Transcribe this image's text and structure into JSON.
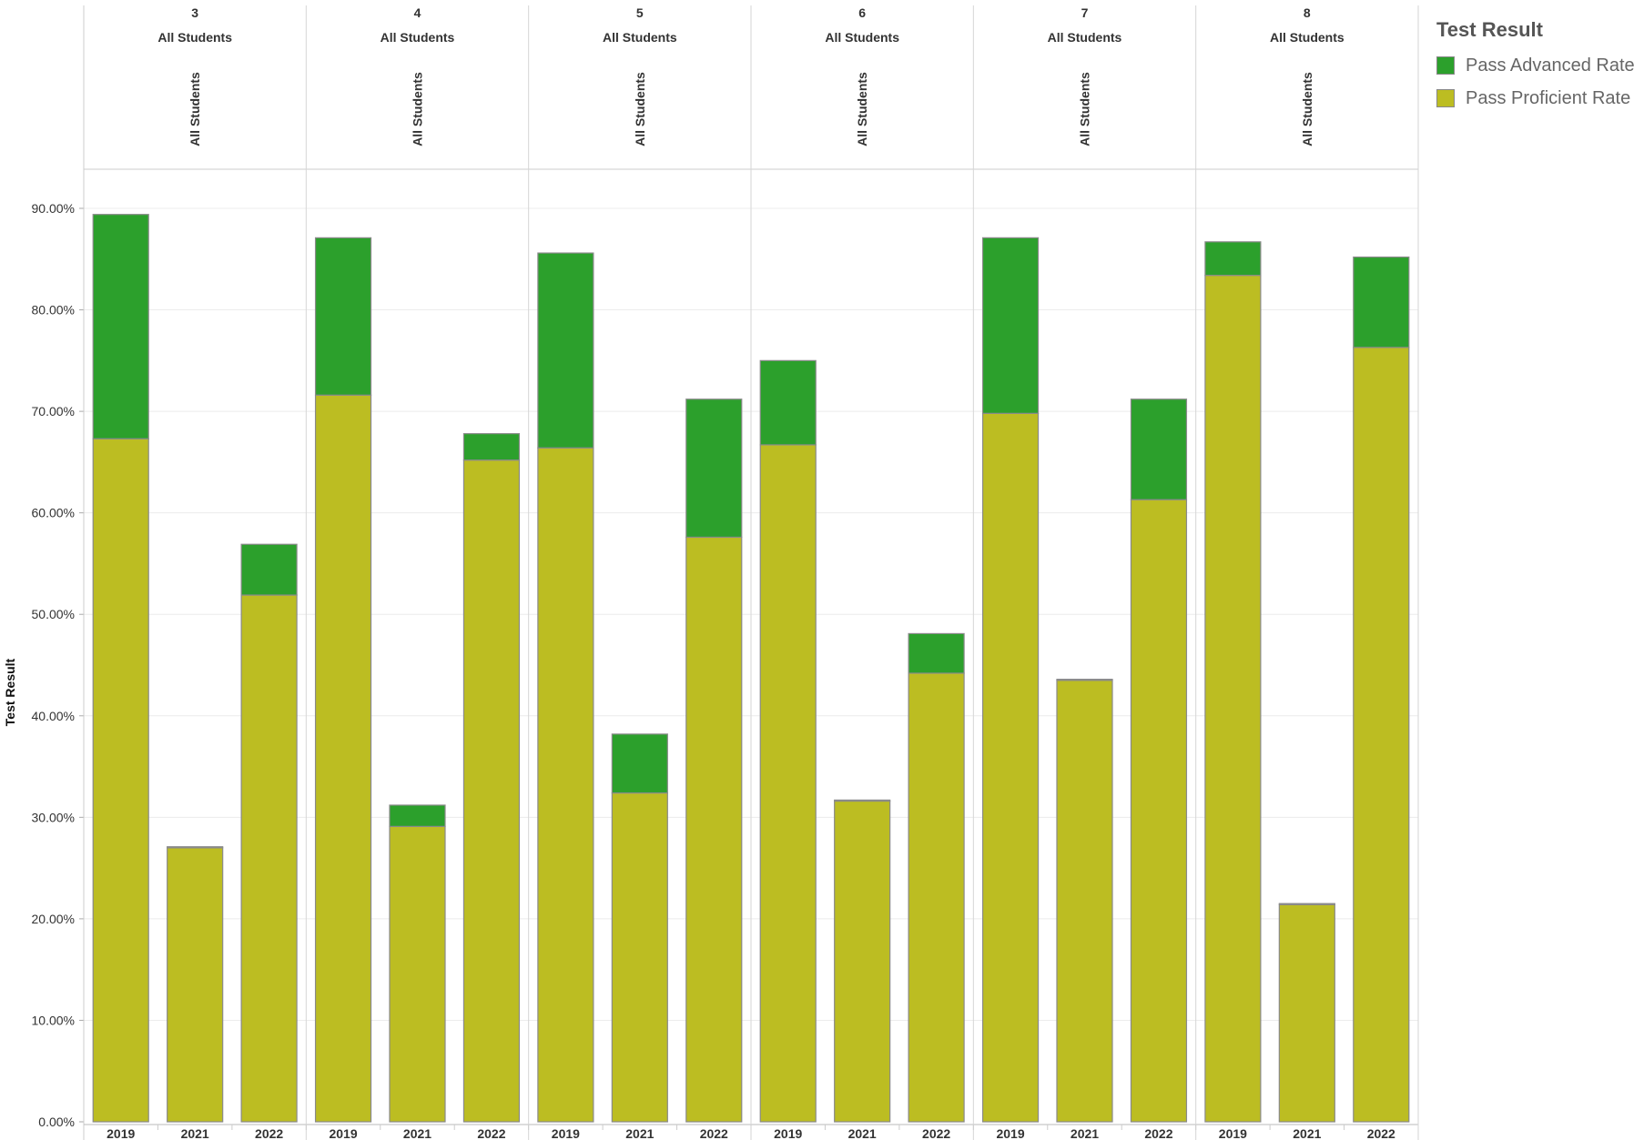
{
  "chart_data": {
    "type": "bar",
    "stacked": true,
    "ylabel": "Test Result",
    "ylim": [
      0,
      90
    ],
    "yticks": [
      "0.00%",
      "10.00%",
      "20.00%",
      "30.00%",
      "40.00%",
      "50.00%",
      "60.00%",
      "70.00%",
      "80.00%",
      "90.00%"
    ],
    "grid": true,
    "legend_position": "top-right",
    "colors": {
      "advanced": "#2ca02c",
      "proficient": "#bcbd22",
      "bar_outline": "#8a8a8a"
    },
    "panels": [
      {
        "grade": "3",
        "group": "All Students",
        "subgroup": "All Students",
        "years": [
          "2019",
          "2021",
          "2022"
        ],
        "proficient": [
          67.3,
          27.0,
          51.9
        ],
        "advanced": [
          22.1,
          0.1,
          5.0
        ]
      },
      {
        "grade": "4",
        "group": "All Students",
        "subgroup": "All Students",
        "years": [
          "2019",
          "2021",
          "2022"
        ],
        "proficient": [
          71.6,
          29.1,
          65.2
        ],
        "advanced": [
          15.5,
          2.1,
          2.6
        ]
      },
      {
        "grade": "5",
        "group": "All Students",
        "subgroup": "All Students",
        "years": [
          "2019",
          "2021",
          "2022"
        ],
        "proficient": [
          66.4,
          32.4,
          57.6
        ],
        "advanced": [
          19.2,
          5.8,
          13.6
        ]
      },
      {
        "grade": "6",
        "group": "All Students",
        "subgroup": "All Students",
        "years": [
          "2019",
          "2021",
          "2022"
        ],
        "proficient": [
          66.7,
          31.6,
          44.2
        ],
        "advanced": [
          8.3,
          0.1,
          3.9
        ]
      },
      {
        "grade": "7",
        "group": "All Students",
        "subgroup": "All Students",
        "years": [
          "2019",
          "2021",
          "2022"
        ],
        "proficient": [
          69.8,
          43.5,
          61.3
        ],
        "advanced": [
          17.3,
          0.1,
          9.9
        ]
      },
      {
        "grade": "8",
        "group": "All Students",
        "subgroup": "All Students",
        "years": [
          "2019",
          "2021",
          "2022"
        ],
        "proficient": [
          83.4,
          21.4,
          76.3
        ],
        "advanced": [
          3.3,
          0.1,
          8.9
        ]
      }
    ]
  },
  "legend": {
    "title": "Test Result",
    "items": [
      {
        "label": "Pass Advanced Rate",
        "color": "#2ca02c"
      },
      {
        "label": "Pass Proficient Rate",
        "color": "#bcbd22"
      }
    ]
  }
}
